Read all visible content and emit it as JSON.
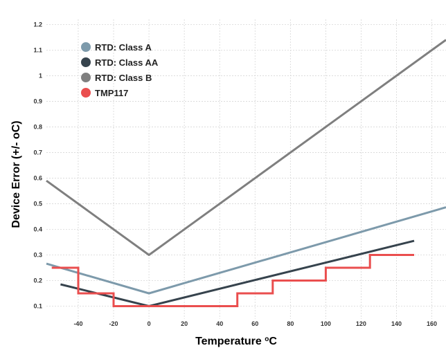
{
  "chart_data": {
    "type": "line",
    "title": "",
    "xlabel": "Temperature",
    "xlabel_sup": "o",
    "xlabel_unit": "C",
    "ylabel": "Device Error (+/- oC)",
    "xlim": [
      -58,
      168
    ],
    "ylim": [
      0.05,
      1.22
    ],
    "x_ticks": [
      -40,
      -20,
      0,
      20,
      40,
      60,
      80,
      100,
      120,
      140,
      160
    ],
    "y_ticks": [
      0.1,
      0.2,
      0.3,
      0.4,
      0.5,
      0.6,
      0.7,
      0.8,
      0.9,
      1,
      1.1,
      1.2
    ],
    "y_tick_labels": [
      "0.1",
      "0.2",
      "0.3",
      "0.4",
      "0.5",
      "0.6",
      "0.7",
      "0.8",
      "0.9",
      "1",
      "1.1",
      "1.2"
    ],
    "grid": true,
    "legend_position": "top-left",
    "series": [
      {
        "name": "RTD: Class A",
        "color": "#7d9aab",
        "step": false,
        "x": [
          -58,
          0,
          168
        ],
        "y": [
          0.266,
          0.15,
          0.486
        ]
      },
      {
        "name": "RTD: Class AA",
        "color": "#36434d",
        "step": false,
        "x": [
          -50,
          0,
          150
        ],
        "y": [
          0.185,
          0.1,
          0.355
        ]
      },
      {
        "name": "RTD: Class B",
        "color": "#7f7f7f",
        "step": false,
        "x": [
          -58,
          0,
          168
        ],
        "y": [
          0.59,
          0.3,
          1.14
        ]
      },
      {
        "name": "TMP117",
        "color": "#ea4e4e",
        "step": true,
        "x": [
          -55,
          -40,
          -40,
          -20,
          -20,
          50,
          50,
          70,
          70,
          100,
          100,
          125,
          125,
          150
        ],
        "y": [
          0.25,
          0.25,
          0.15,
          0.15,
          0.1,
          0.1,
          0.15,
          0.15,
          0.2,
          0.2,
          0.25,
          0.25,
          0.3,
          0.3
        ]
      }
    ]
  }
}
